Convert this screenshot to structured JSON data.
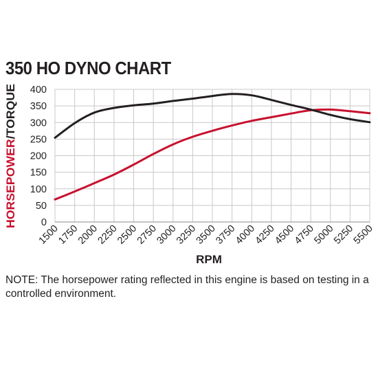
{
  "chart_data": {
    "type": "line",
    "title": "350 HO DYNO CHART",
    "xlabel": "RPM",
    "ylabel_parts": [
      {
        "text": "HORSEPOWER",
        "color": "#c8102e"
      },
      {
        "text": "/TORQUE",
        "color": "#231f20"
      }
    ],
    "x": [
      1500,
      1750,
      2000,
      2250,
      2500,
      2750,
      3000,
      3250,
      3500,
      3750,
      4000,
      4250,
      4500,
      4750,
      5000,
      5250,
      5500
    ],
    "x_tick_labels": [
      "1500",
      "1750",
      "2000",
      "2250",
      "2500",
      "2750",
      "3000",
      "3250",
      "3500",
      "3750",
      "4000",
      "4250",
      "4500",
      "4750",
      "5000",
      "5250",
      "5500"
    ],
    "y_ticks": [
      0,
      50,
      100,
      150,
      200,
      250,
      300,
      350,
      400
    ],
    "y_tick_labels": [
      "0",
      "50",
      "100",
      "150",
      "200",
      "250",
      "300",
      "350",
      "400"
    ],
    "xlim": [
      1500,
      5500
    ],
    "ylim": [
      0,
      400
    ],
    "grid": true,
    "series": [
      {
        "values": [
          68,
          92,
          117,
          143,
          173,
          205,
          234,
          257,
          275,
          291,
          305,
          316,
          327,
          337,
          339,
          334,
          328
        ],
        "color": "#c8102e"
      },
      {
        "values": [
          254,
          298,
          330,
          344,
          352,
          357,
          365,
          372,
          380,
          386,
          382,
          368,
          353,
          339,
          323,
          310,
          301
        ],
        "color": "#231f20"
      }
    ]
  },
  "note": "NOTE: The horsepower rating reflected in this engine is based on testing in a controlled environment.",
  "colors": {
    "grid": "#c8c8c8",
    "axis": "#231f20"
  }
}
